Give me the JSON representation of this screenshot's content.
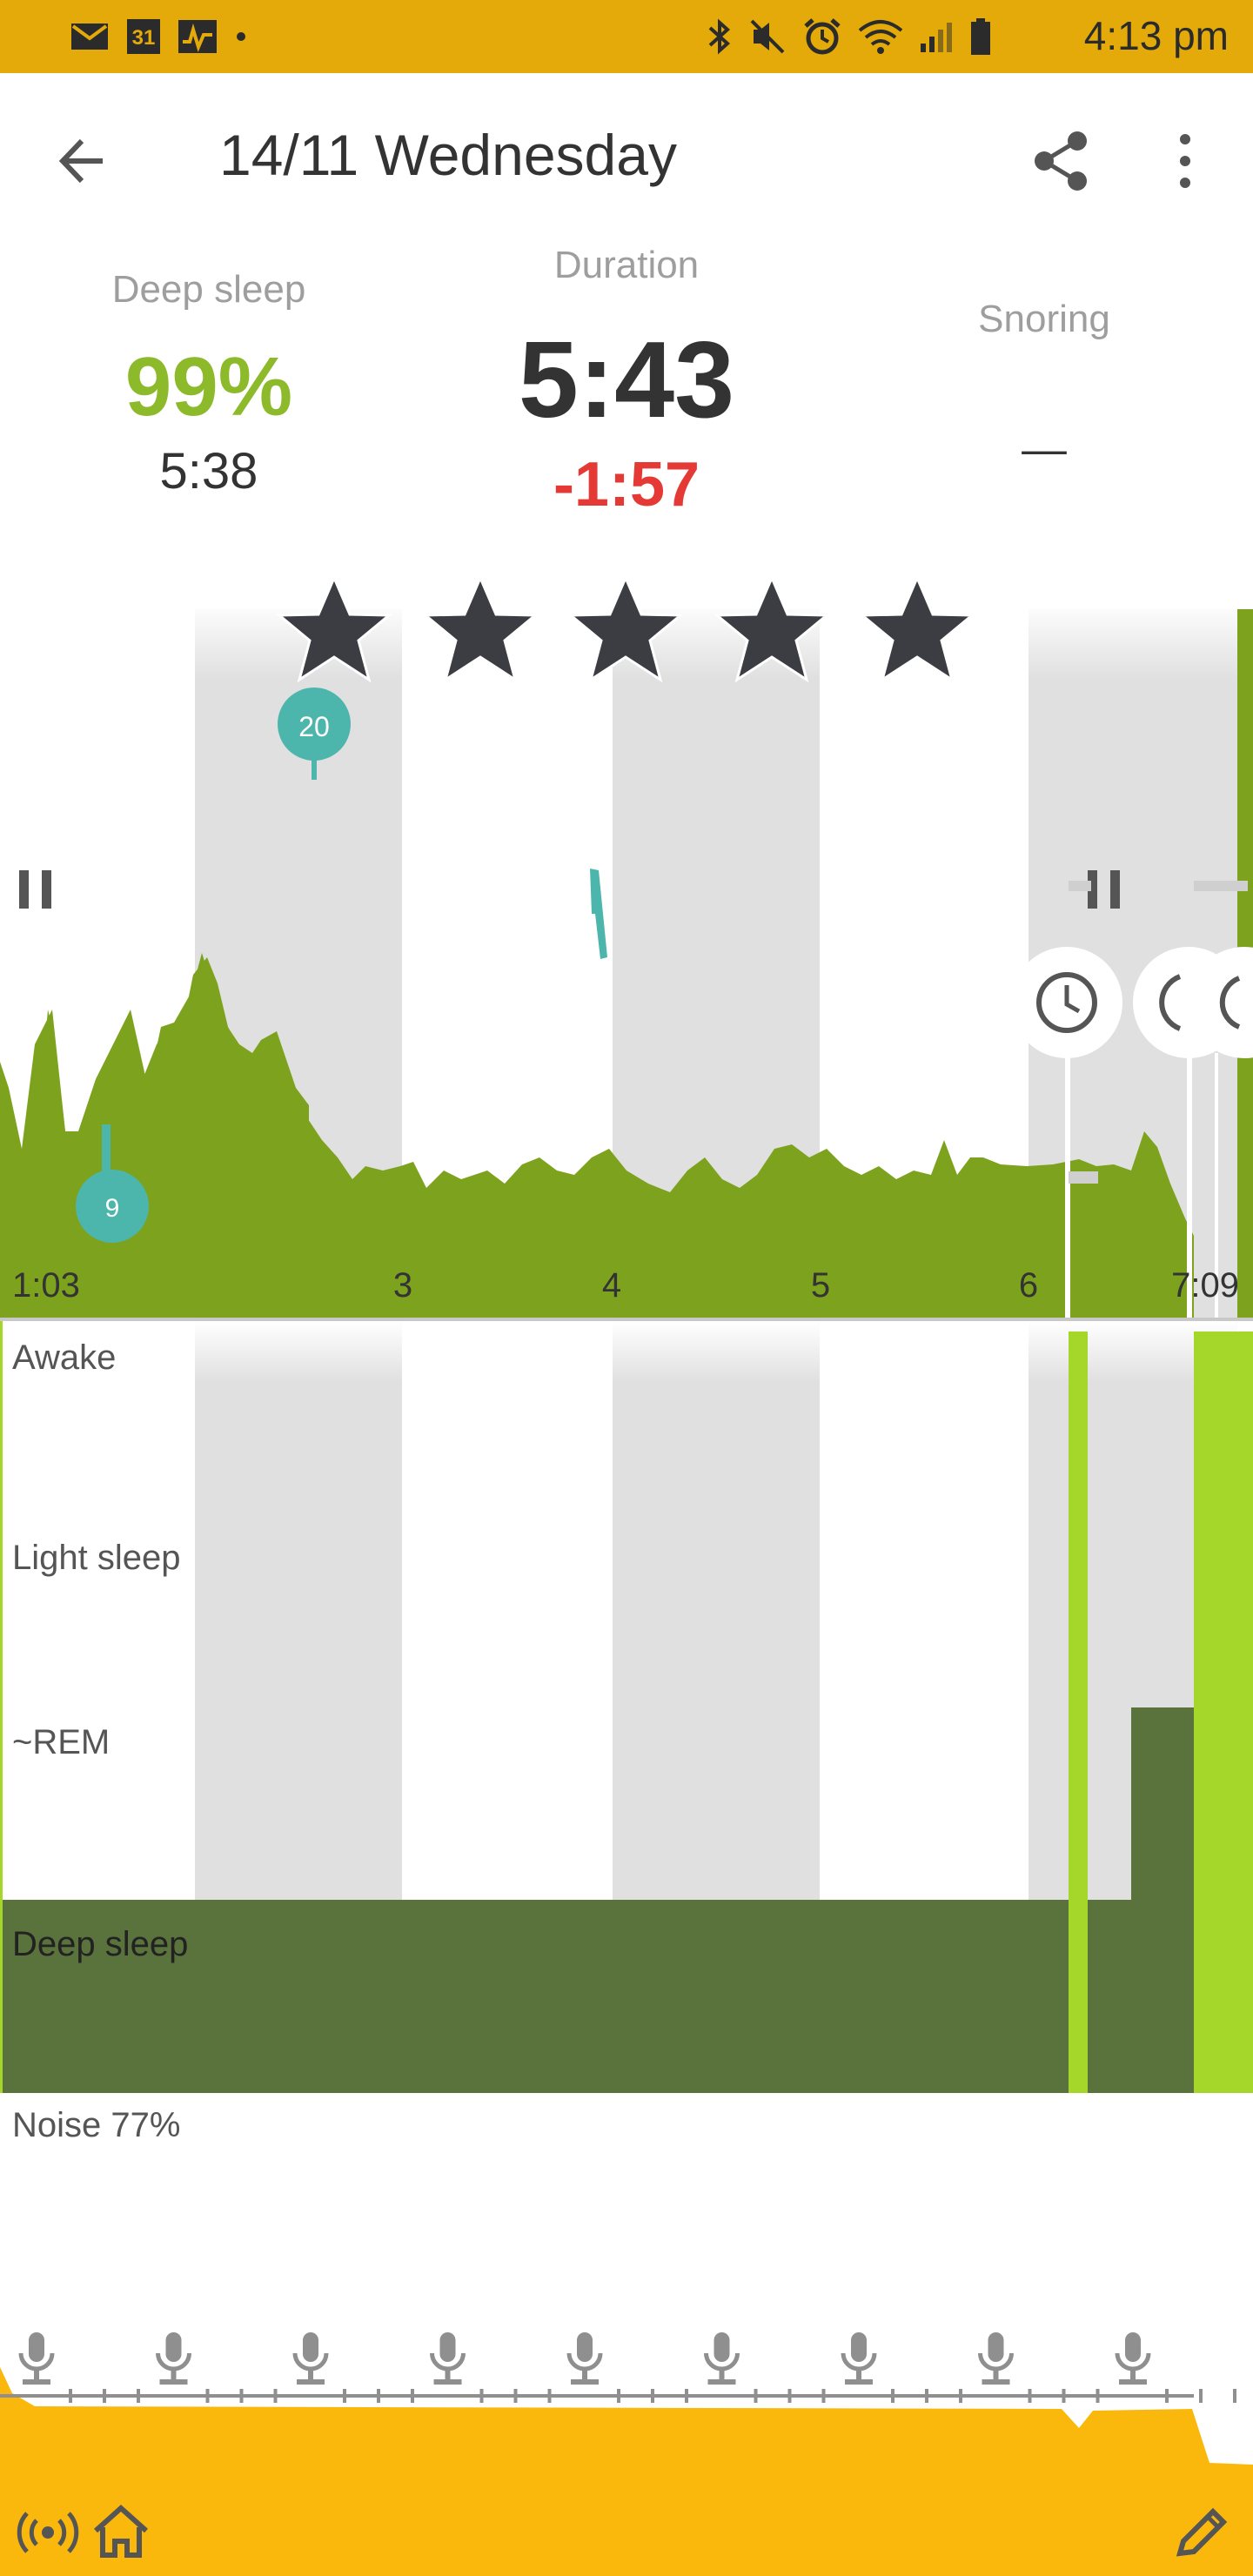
{
  "status_bar": {
    "time": "4:13 pm",
    "left_icons": [
      "mail-icon",
      "calendar-icon",
      "activity-icon",
      "dot-icon"
    ],
    "right_icons": [
      "bluetooth-icon",
      "mute-icon",
      "alarm-icon",
      "wifi-icon",
      "signal-icon",
      "battery-icon"
    ],
    "calendar_day": "31",
    "color": "#e3aa0a"
  },
  "header": {
    "title": "14/11 Wednesday",
    "back_icon": "back-arrow-icon",
    "share_icon": "share-icon",
    "more_icon": "more-vert-icon"
  },
  "stats": {
    "deep_sleep": {
      "label": "Deep sleep",
      "percent": "99%",
      "time": "5:38"
    },
    "duration": {
      "label": "Duration",
      "value": "5:43",
      "diff": "-1:57"
    },
    "snoring": {
      "label": "Snoring",
      "value": "_"
    }
  },
  "rating": {
    "stars": 5,
    "max": 5
  },
  "hypnogram": {
    "time_labels": [
      "1:03",
      "3",
      "4",
      "5",
      "6",
      "7:09"
    ],
    "markers": [
      {
        "label": "20"
      },
      {
        "label": "9"
      }
    ],
    "phases": [
      "Awake",
      "Light sleep",
      "~REM",
      "Deep sleep"
    ]
  },
  "noise": {
    "label": "Noise 77%",
    "mic_count": 9
  },
  "colors": {
    "accent_green": "#7da21e",
    "light_green": "#a5d72a",
    "dark_green": "#5a723c",
    "teal": "#4db6ac",
    "red": "#e53935",
    "amber": "#fbb80c"
  },
  "bottom_bar": {
    "left_icons": [
      "broadcast-icon",
      "home-icon"
    ],
    "right_icon": "edit-icon"
  }
}
